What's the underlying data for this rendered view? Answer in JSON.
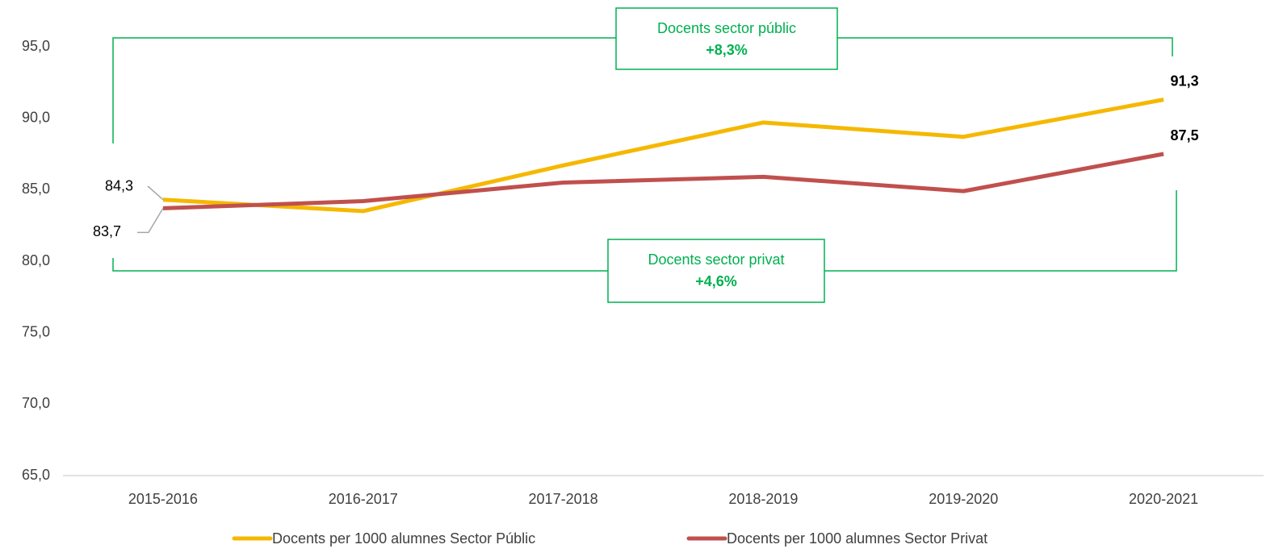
{
  "chart_data": {
    "type": "line",
    "categories": [
      "2015-2016",
      "2016-2017",
      "2017-2018",
      "2018-2019",
      "2019-2020",
      "2020-2021"
    ],
    "series": [
      {
        "name": "Docents per 1000 alumnes Sector Públic",
        "color": "#f5b800",
        "values": [
          84.3,
          83.5,
          86.7,
          89.7,
          88.7,
          91.3
        ],
        "value_labels": [
          "84,3",
          null,
          null,
          null,
          null,
          "91,3"
        ]
      },
      {
        "name": "Docents per 1000 alumnes Sector Privat",
        "color": "#c0504d",
        "values": [
          83.7,
          84.2,
          85.5,
          85.9,
          84.9,
          87.5
        ],
        "value_labels": [
          "83,7",
          null,
          null,
          null,
          null,
          "87,5"
        ]
      }
    ],
    "ylim": [
      65,
      95
    ],
    "yticks": [
      {
        "value": 65,
        "label": "65,0"
      },
      {
        "value": 70,
        "label": "70,0"
      },
      {
        "value": 75,
        "label": "75,0"
      },
      {
        "value": 80,
        "label": "80,0"
      },
      {
        "value": 85,
        "label": "85,0"
      },
      {
        "value": 90,
        "label": "90,0"
      },
      {
        "value": 95,
        "label": "95,0"
      }
    ],
    "grid": false,
    "legend": "bottom",
    "annotations": [
      {
        "text": "Docents sector públic",
        "change": "+8,3%",
        "color": "#00b050"
      },
      {
        "text": "Docents sector privat",
        "change": "+4,6%",
        "color": "#00b050"
      }
    ]
  }
}
